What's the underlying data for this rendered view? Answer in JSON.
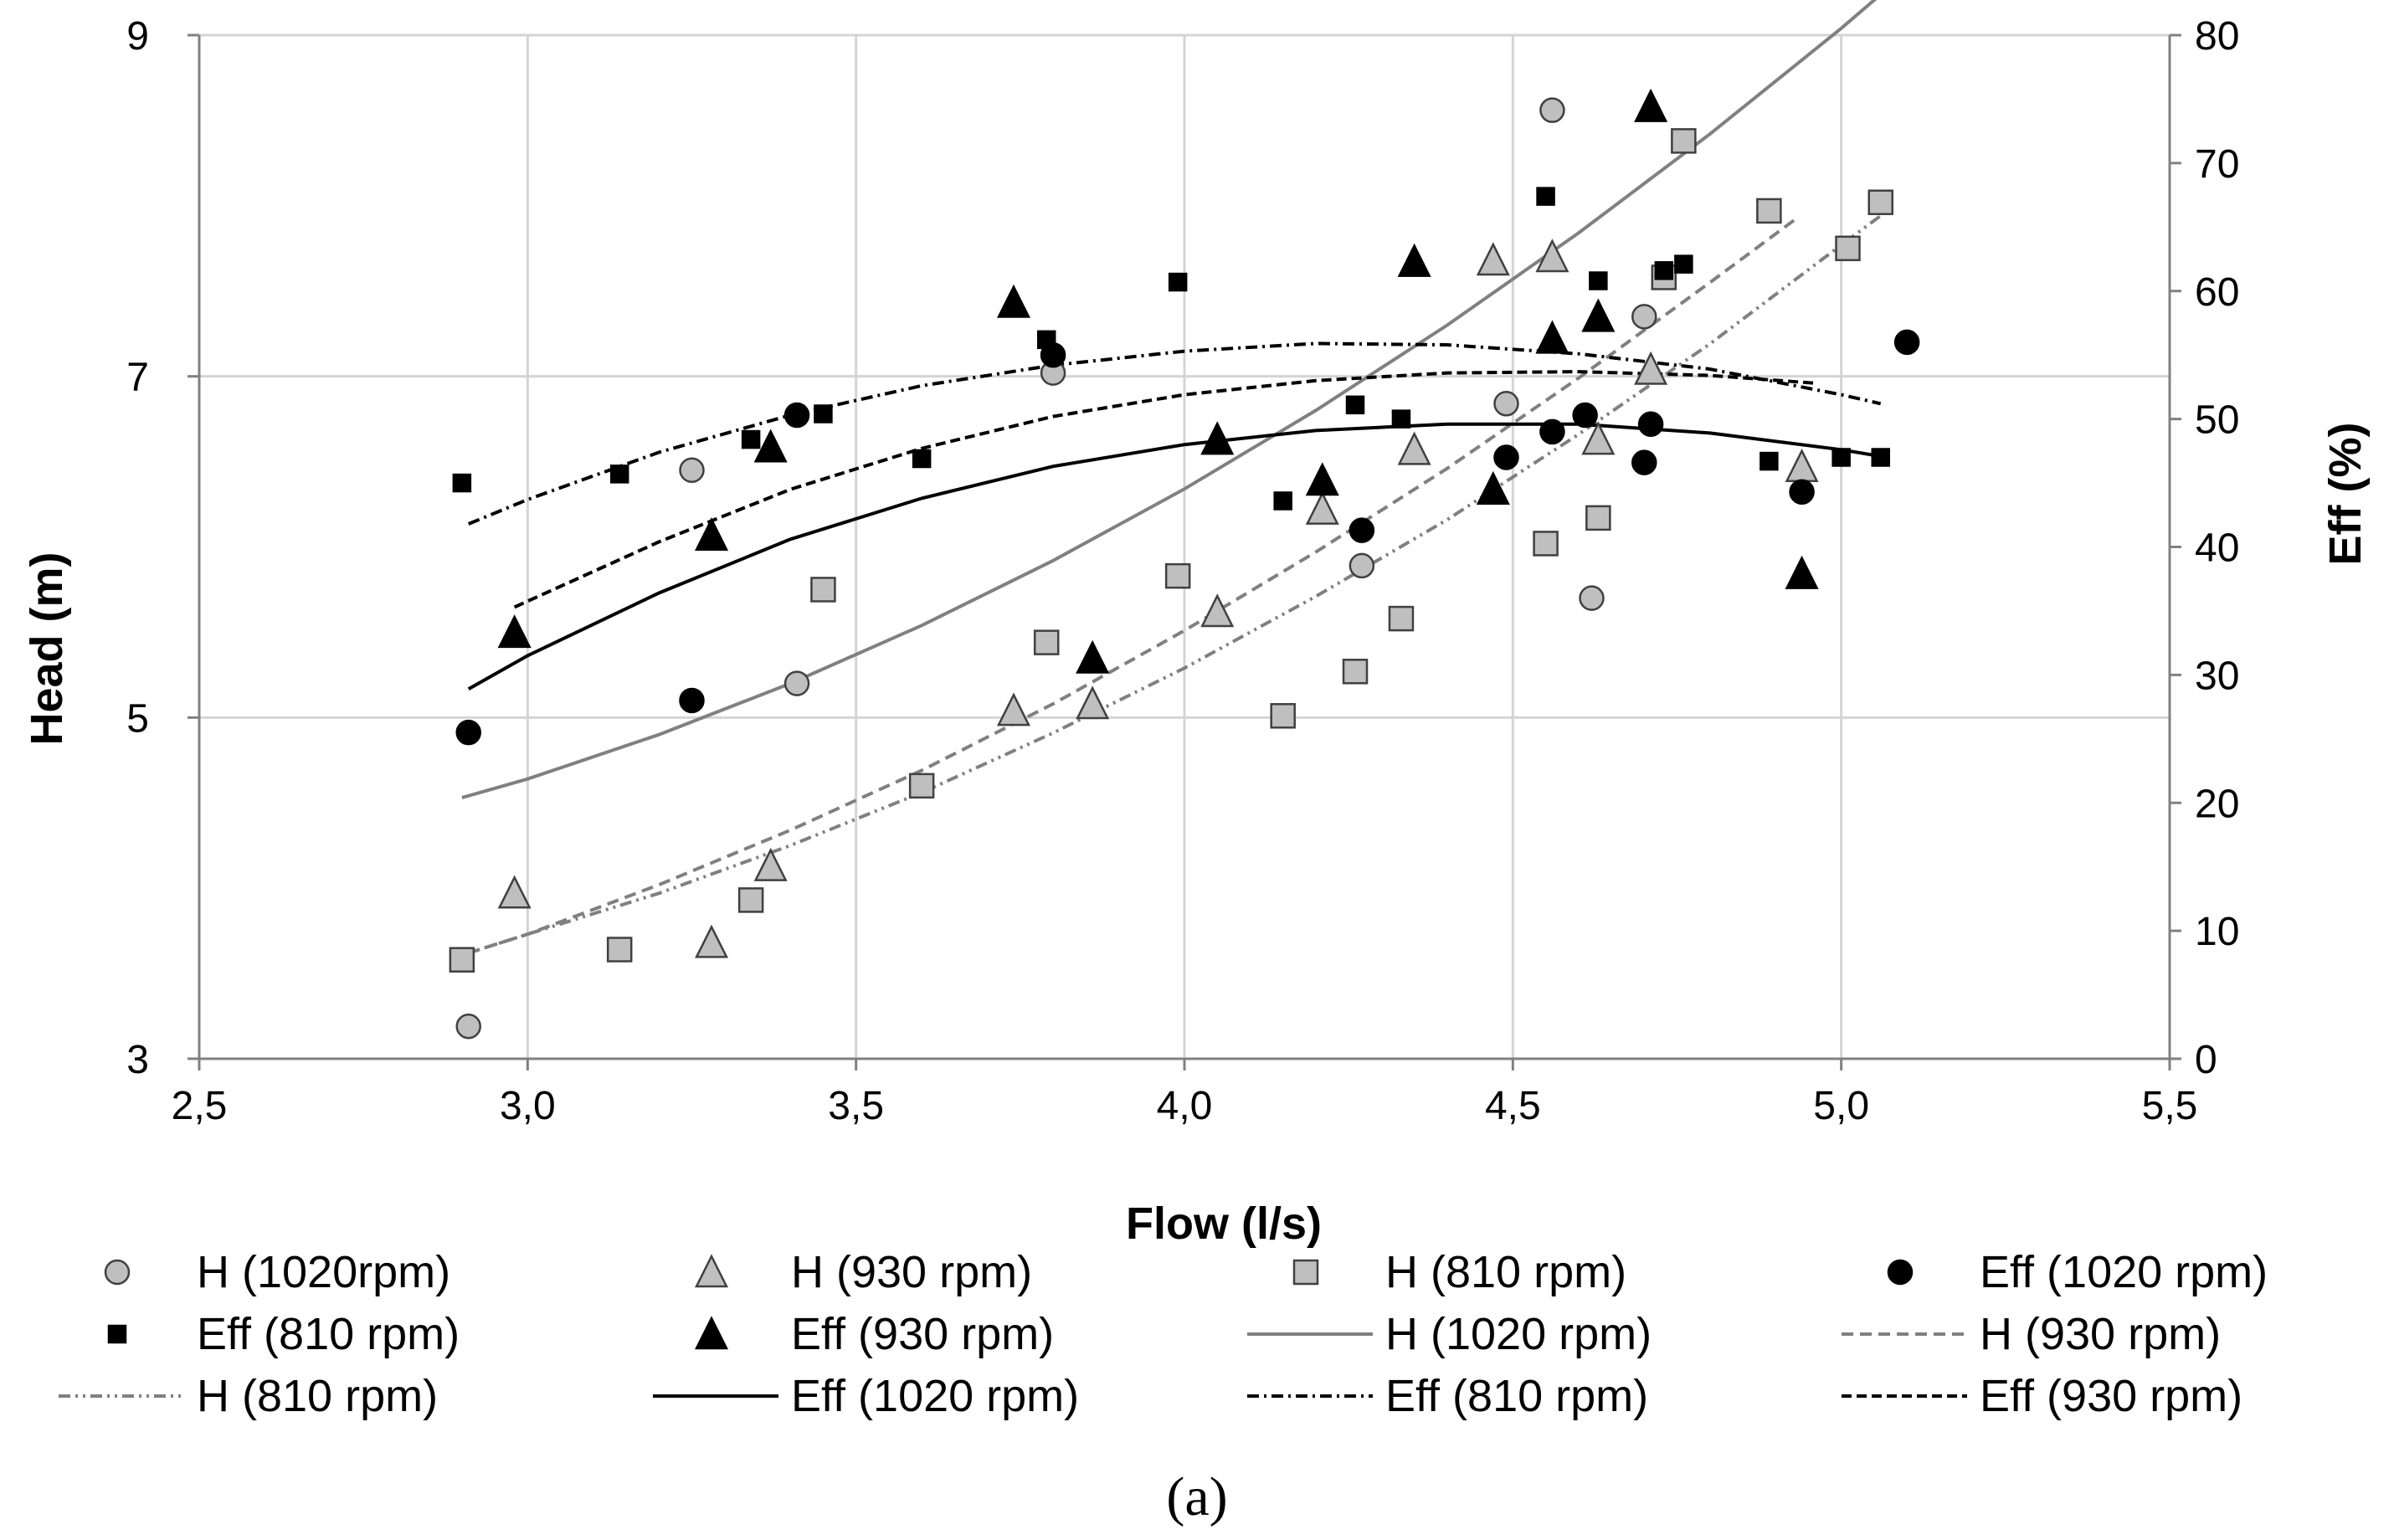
{
  "chart_data": {
    "type": "scatter",
    "caption": "(a)",
    "xlabel": "Flow (l/s)",
    "ylabel": "Head (m)",
    "y2label": "Eff (%)",
    "xlim": [
      2.5,
      5.5
    ],
    "ylim": [
      3,
      9
    ],
    "y2lim": [
      0,
      80
    ],
    "grid": true,
    "legend_position": "bottom",
    "x_ticks": [
      "2,5",
      "3,0",
      "3,5",
      "4,0",
      "4,5",
      "5,0",
      "5,5"
    ],
    "x_tick_values": [
      2.5,
      3.0,
      3.5,
      4.0,
      4.5,
      5.0,
      5.5
    ],
    "y_ticks": [
      "3",
      "5",
      "7",
      "9"
    ],
    "y_tick_values": [
      3,
      5,
      7,
      9
    ],
    "y2_ticks": [
      "0",
      "10",
      "20",
      "30",
      "40",
      "50",
      "60",
      "70",
      "80"
    ],
    "y2_tick_values": [
      0,
      10,
      20,
      30,
      40,
      50,
      60,
      70,
      80
    ],
    "series": [
      {
        "name": "H (1020rpm)",
        "kind": "marker",
        "marker": "circle",
        "fill": "#bfbfbf",
        "stroke": "#404040",
        "axis": "left",
        "x": [
          2.91,
          3.25,
          3.41,
          3.8,
          4.27,
          4.49,
          4.56,
          4.62,
          4.7
        ],
        "y": [
          3.19,
          6.45,
          5.2,
          7.02,
          5.89,
          6.84,
          8.56,
          5.7,
          7.35
        ]
      },
      {
        "name": "H (930 rpm)",
        "kind": "marker",
        "marker": "triangle",
        "fill": "#bfbfbf",
        "stroke": "#404040",
        "axis": "left",
        "x": [
          2.98,
          3.28,
          3.37,
          3.74,
          3.86,
          4.05,
          4.21,
          4.35,
          4.47,
          4.56,
          4.63,
          4.71,
          4.94
        ],
        "y": [
          3.97,
          3.68,
          4.13,
          5.04,
          5.08,
          5.62,
          6.22,
          6.57,
          7.68,
          7.7,
          6.63,
          7.04,
          6.47
        ]
      },
      {
        "name": "H (810 rpm)",
        "kind": "marker",
        "marker": "square",
        "fill": "#bfbfbf",
        "stroke": "#404040",
        "axis": "left",
        "x": [
          2.9,
          3.14,
          3.34,
          3.45,
          3.6,
          3.79,
          3.99,
          4.15,
          4.26,
          4.33,
          4.55,
          4.63,
          4.73,
          4.76,
          4.89,
          5.01,
          5.06
        ],
        "y": [
          3.58,
          3.64,
          3.93,
          5.75,
          4.6,
          5.44,
          5.83,
          5.01,
          5.27,
          5.58,
          6.02,
          6.17,
          7.58,
          8.38,
          7.97,
          7.75,
          8.02
        ]
      },
      {
        "name": "Eff (1020 rpm)",
        "kind": "marker",
        "marker": "circle",
        "fill": "#000000",
        "stroke": "#000000",
        "axis": "right",
        "x": [
          2.91,
          3.25,
          3.41,
          3.8,
          4.27,
          4.49,
          4.56,
          4.61,
          4.7,
          4.71,
          4.94,
          5.1
        ],
        "y": [
          25.5,
          28.0,
          50.3,
          55.0,
          41.3,
          47.0,
          49.0,
          50.3,
          46.6,
          49.6,
          44.3,
          56.0
        ]
      },
      {
        "name": "Eff (810 rpm)",
        "kind": "marker",
        "marker": "square",
        "fill": "#000000",
        "stroke": "#000000",
        "axis": "right",
        "x": [
          2.9,
          3.14,
          3.34,
          3.45,
          3.6,
          3.79,
          3.99,
          4.15,
          4.26,
          4.33,
          4.55,
          4.63,
          4.73,
          4.76,
          4.89,
          5.0,
          5.06
        ],
        "y": [
          45.0,
          45.7,
          48.4,
          50.4,
          46.9,
          56.2,
          60.7,
          43.6,
          51.1,
          50.0,
          67.4,
          60.8,
          61.6,
          62.1,
          46.7,
          47.0,
          47.0
        ]
      },
      {
        "name": "Eff (930 rpm)",
        "kind": "marker",
        "marker": "triangle",
        "fill": "#000000",
        "stroke": "#000000",
        "axis": "right",
        "x": [
          2.98,
          3.28,
          3.37,
          3.74,
          3.86,
          4.05,
          4.21,
          4.35,
          4.47,
          4.56,
          4.63,
          4.71,
          4.94
        ],
        "y": [
          33.3,
          40.9,
          47.8,
          59.1,
          31.3,
          48.4,
          45.2,
          62.3,
          44.5,
          56.3,
          58.0,
          74.4,
          37.9
        ]
      },
      {
        "name": "H (1020 rpm)",
        "kind": "line",
        "dash": "",
        "stroke": "#808080",
        "axis": "left",
        "x": [
          2.9,
          3.0,
          3.2,
          3.4,
          3.6,
          3.8,
          4.0,
          4.2,
          4.4,
          4.6,
          4.8,
          5.0,
          5.1
        ],
        "y": [
          4.53,
          4.64,
          4.9,
          5.2,
          5.54,
          5.92,
          6.34,
          6.8,
          7.3,
          7.84,
          8.42,
          9.04,
          9.37
        ]
      },
      {
        "name": "H (930 rpm)",
        "kind": "line",
        "dash": "14,8",
        "stroke": "#808080",
        "axis": "left",
        "x": [
          2.91,
          3.0,
          3.2,
          3.4,
          3.6,
          3.8,
          4.0,
          4.2,
          4.4,
          4.6,
          4.8,
          4.93
        ],
        "y": [
          3.62,
          3.73,
          4.02,
          4.34,
          4.69,
          5.08,
          5.51,
          5.97,
          6.46,
          6.99,
          7.55,
          7.92
        ]
      },
      {
        "name": "H (810 rpm)",
        "kind": "line",
        "dash": "14,6,3,6,3,6",
        "stroke": "#808080",
        "axis": "left",
        "x": [
          2.91,
          3.0,
          3.2,
          3.4,
          3.6,
          3.8,
          4.0,
          4.2,
          4.4,
          4.6,
          4.8,
          5.0,
          5.07
        ],
        "y": [
          3.62,
          3.73,
          3.97,
          4.25,
          4.56,
          4.91,
          5.29,
          5.71,
          6.16,
          6.66,
          7.19,
          7.77,
          7.97
        ]
      },
      {
        "name": "Eff (1020 rpm)",
        "kind": "line",
        "dash": "",
        "stroke": "#000000",
        "axis": "right",
        "x": [
          2.91,
          3.0,
          3.2,
          3.4,
          3.6,
          3.8,
          4.0,
          4.2,
          4.4,
          4.6,
          4.8,
          5.0,
          5.07
        ],
        "y": [
          28.9,
          31.5,
          36.4,
          40.6,
          43.8,
          46.3,
          48.0,
          49.1,
          49.6,
          49.6,
          48.9,
          47.6,
          47.0
        ]
      },
      {
        "name": "Eff (810 rpm)",
        "kind": "line",
        "dash": "14,6,3,6",
        "stroke": "#000000",
        "axis": "right",
        "x": [
          2.91,
          3.0,
          3.2,
          3.4,
          3.6,
          3.8,
          4.0,
          4.2,
          4.4,
          4.6,
          4.8,
          5.0,
          5.06
        ],
        "y": [
          41.8,
          43.7,
          47.4,
          50.3,
          52.6,
          54.2,
          55.3,
          55.9,
          55.8,
          55.1,
          53.9,
          51.9,
          51.2
        ]
      },
      {
        "name": "Eff (930 rpm)",
        "kind": "line",
        "dash": "12,6",
        "stroke": "#000000",
        "axis": "right",
        "x": [
          2.98,
          3.2,
          3.4,
          3.6,
          3.8,
          4.0,
          4.2,
          4.4,
          4.6,
          4.8,
          4.96
        ],
        "y": [
          35.3,
          40.4,
          44.5,
          47.7,
          50.2,
          51.9,
          53.0,
          53.6,
          53.7,
          53.4,
          52.8
        ]
      }
    ]
  }
}
